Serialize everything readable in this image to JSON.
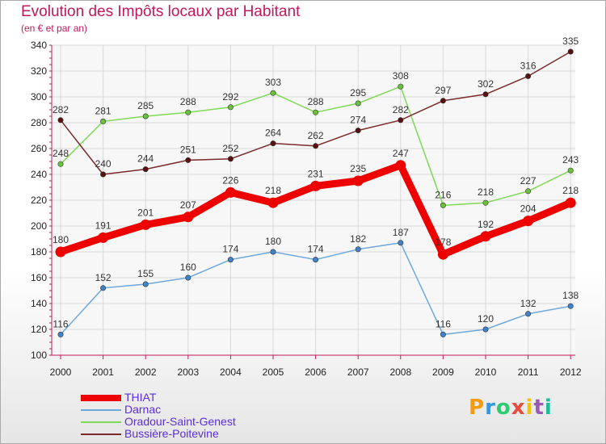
{
  "chart_data": {
    "type": "line",
    "title": "Evolution des Impôts locaux par Habitant",
    "subtitle": "(en € et par an)",
    "categories": [
      "2000",
      "2001",
      "2002",
      "2003",
      "2004",
      "2005",
      "2006",
      "2007",
      "2008",
      "2009",
      "2010",
      "2011",
      "2012"
    ],
    "y_ticks": [
      "100",
      "120",
      "140",
      "160",
      "180",
      "200",
      "220",
      "240",
      "260",
      "280",
      "300",
      "320",
      "340"
    ],
    "ylim": [
      100,
      340
    ],
    "grid": true,
    "legend_position": "bottom-left",
    "series": [
      {
        "name": "Oradour-Saint-Genest",
        "color": "#7ed957",
        "dot": "#6ac23a",
        "values": [
          248,
          281,
          285,
          288,
          292,
          303,
          288,
          295,
          308,
          216,
          218,
          227,
          243
        ],
        "labels": [
          "248",
          "281",
          "285",
          "288",
          "292",
          "303",
          "288",
          "295",
          "308",
          "216",
          "218",
          "227",
          "243"
        ]
      },
      {
        "name": "Bussière-Poitevine",
        "color": "#7a2a2a",
        "dot": "#5a1010",
        "values": [
          282,
          240,
          244,
          251,
          252,
          264,
          262,
          274,
          282,
          297,
          302,
          316,
          335
        ],
        "labels": [
          "282",
          "240",
          "244",
          "251",
          "252",
          "264",
          "262",
          "274",
          "282",
          "297",
          "302",
          "316",
          "335"
        ]
      },
      {
        "name": "Darnac",
        "color": "#6ea8dc",
        "dot": "#3f83c8",
        "values": [
          116,
          152,
          155,
          160,
          174,
          180,
          174,
          182,
          187,
          116,
          120,
          132,
          138
        ],
        "labels": [
          "116",
          "152",
          "155",
          "160",
          "174",
          "180",
          "174",
          "182",
          "187",
          "116",
          "120",
          "132",
          "138"
        ]
      },
      {
        "name": "THIAT",
        "color": "#ee0000",
        "dot": "#ee0000",
        "values": [
          180,
          191,
          201,
          207,
          226,
          218,
          231,
          235,
          247,
          178,
          192,
          204,
          218
        ],
        "labels": [
          "180",
          "191",
          "201",
          "207",
          "226",
          "218",
          "231",
          "235",
          "247",
          "178",
          "192",
          "204",
          "218"
        ]
      }
    ]
  },
  "legend": [
    {
      "label": "THIAT",
      "color": "#ee0000"
    },
    {
      "label": "Darnac",
      "color": "#6ea8dc"
    },
    {
      "label": "Oradour-Saint-Genest",
      "color": "#7ed957"
    },
    {
      "label": "Bussière-Poitevine",
      "color": "#7a2a2a"
    }
  ],
  "logo": {
    "text": "Proxiti",
    "colors": [
      "#f39c12",
      "#3498db",
      "#2ecc71",
      "#e74c3c",
      "#f1c40f",
      "#9b59b6",
      "#1abc9c"
    ]
  }
}
